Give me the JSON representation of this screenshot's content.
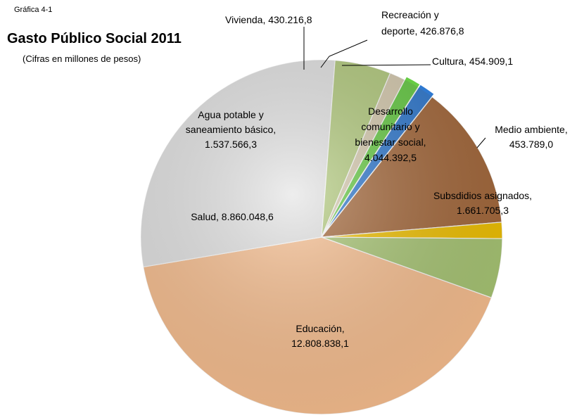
{
  "chart_data": {
    "type": "pie",
    "figure_label": "Gráfica 4-1",
    "title": "Gasto Público Social 2011",
    "subtitle": "(Cifras en millones de pesos)",
    "slices": [
      {
        "name": "Educación",
        "value": 12808838.1,
        "label_lines": [
          "Educación,",
          "12.808.838,1"
        ],
        "color": "#FAC090"
      },
      {
        "name": "Salud",
        "value": 8860048.6,
        "label_lines": [
          "Salud,   8.860.048,6"
        ],
        "color": "#E4E4E4"
      },
      {
        "name": "Agua potable y saneamiento básico",
        "value": 1537566.3,
        "label_lines": [
          "Agua potable  y",
          "saneamiento básico,",
          "1.537.566,3"
        ],
        "color": "#B4CC7E"
      },
      {
        "name": "Vivienda",
        "value": 430216.8,
        "label_lines": [
          "Vivienda,   430.216,8"
        ],
        "color": "#D8CCB0"
      },
      {
        "name": "Recreación y deporte",
        "value": 426876.8,
        "label_lines": [
          "Recreación y",
          "deporte,  426.876,8"
        ],
        "color": "#66CC44"
      },
      {
        "name": "Cultura",
        "value": 454909.1,
        "label_lines": [
          "Cultura,    454.909,1"
        ],
        "color": "#2F79D0"
      },
      {
        "name": "Desarrollo comunitario y bienestar social",
        "value": 4044392.5,
        "label_lines": [
          "Desarrollo",
          "comunitario y",
          "bienestar social,",
          "4.044.392,5"
        ],
        "color": "#A5683A"
      },
      {
        "name": "Medio ambiente",
        "value": 453789.0,
        "label_lines": [
          "Medio ambiente,",
          "453.789,0"
        ],
        "color": "#F2C200"
      },
      {
        "name": "Subsdidios asignados",
        "value": 1661705.3,
        "label_lines": [
          "Subsdidios asignados,",
          "1.661.705,3"
        ],
        "color": "#A9C774"
      }
    ]
  }
}
